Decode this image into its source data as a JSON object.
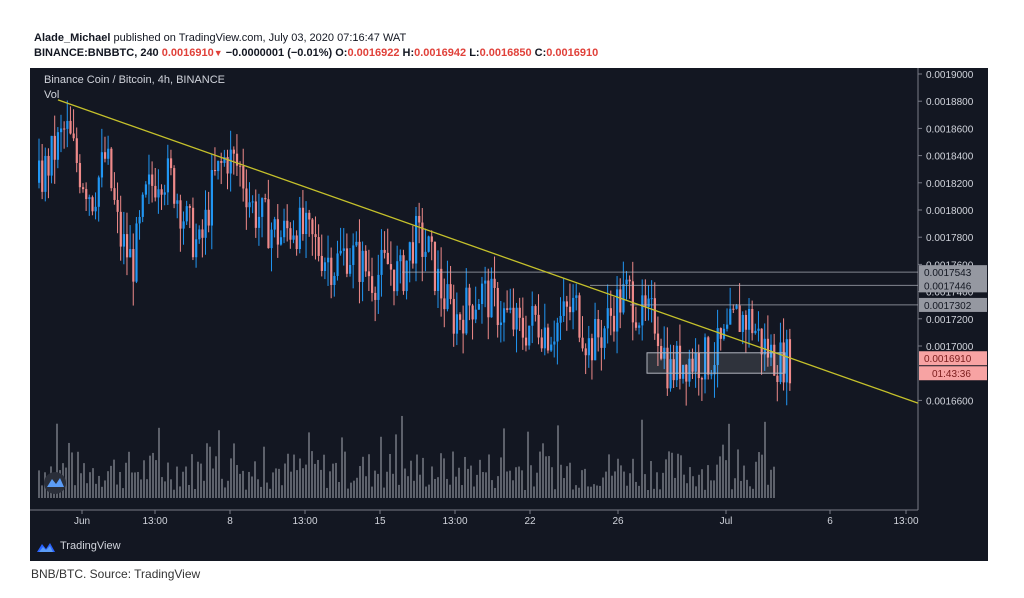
{
  "header": {
    "author": "Alade_Michael",
    "published": " published on TradingView.com, July 03, 2020 07:16:47 WAT",
    "symbol_line": "BINANCE:BNBBTC, 240",
    "last": "0.0016910",
    "change": "−0.0000001 (−0.01%)",
    "open_label": "O:",
    "open": "0.0016922",
    "high_label": "H:",
    "high": "0.0016942",
    "low_label": "L:",
    "low": "0.0016850",
    "close_label": "C:",
    "close": "0.0016910"
  },
  "chart_data": {
    "type": "candlestick",
    "title": "Binance Coin / Bitcoin, 4h, BINANCE",
    "subtitle": "Vol",
    "ylim": [
      0.00164,
      0.0019
    ],
    "y_ticks": [
      "0.0019000",
      "0.0018800",
      "0.0018600",
      "0.0018400",
      "0.0018200",
      "0.0018000",
      "0.0017800",
      "0.0017600",
      "0.0017400",
      "0.0017200",
      "0.0017000",
      "0.0016600"
    ],
    "x_ticks": [
      "Jun",
      "13:00",
      "8",
      "13:00",
      "15",
      "13:00",
      "22",
      "26",
      "Jul",
      "6",
      "13:00"
    ],
    "price_labels": [
      {
        "value": "0.0017543",
        "price": 0.0017543
      },
      {
        "value": "0.0017446",
        "price": 0.0017446
      },
      {
        "value": "0.0017302",
        "price": 0.0017302
      },
      {
        "value": "0.0016910",
        "price": 0.001691
      }
    ],
    "countdown": "01:43:36",
    "trendline": {
      "from_price": 0.001881,
      "to_price": 0.001658
    },
    "series": [
      {
        "name": "close",
        "values": [
          0.00182,
          0.00184,
          0.00186,
          0.00183,
          0.00181,
          0.00184,
          0.00178,
          0.00176,
          0.00181,
          0.00183,
          0.00182,
          0.00179,
          0.00177,
          0.00182,
          0.00184,
          0.00183,
          0.0018,
          0.00179,
          0.00178,
          0.00179,
          0.00178,
          0.00177,
          0.00176,
          0.00177,
          0.00176,
          0.00175,
          0.00176,
          0.00175,
          0.00178,
          0.00177,
          0.00174,
          0.00172,
          0.00173,
          0.00174,
          0.00173,
          0.00172,
          0.00171,
          0.00172,
          0.00171,
          0.00172,
          0.00173,
          0.0017,
          0.00171,
          0.00173,
          0.00174,
          0.00172,
          0.00172,
          0.00168,
          0.00169,
          0.00169,
          0.00169,
          0.0017,
          0.00172,
          0.00172,
          0.0017,
          0.00169,
          0.00169
        ]
      }
    ],
    "colors": {
      "up": "#2196f3",
      "down": "#ef8a8a",
      "trend": "#c5c12b",
      "volume": "#6b6f78"
    }
  },
  "branding": {
    "logo_text": "TradingView"
  },
  "caption": "BNB/BTC. Source: TradingView"
}
